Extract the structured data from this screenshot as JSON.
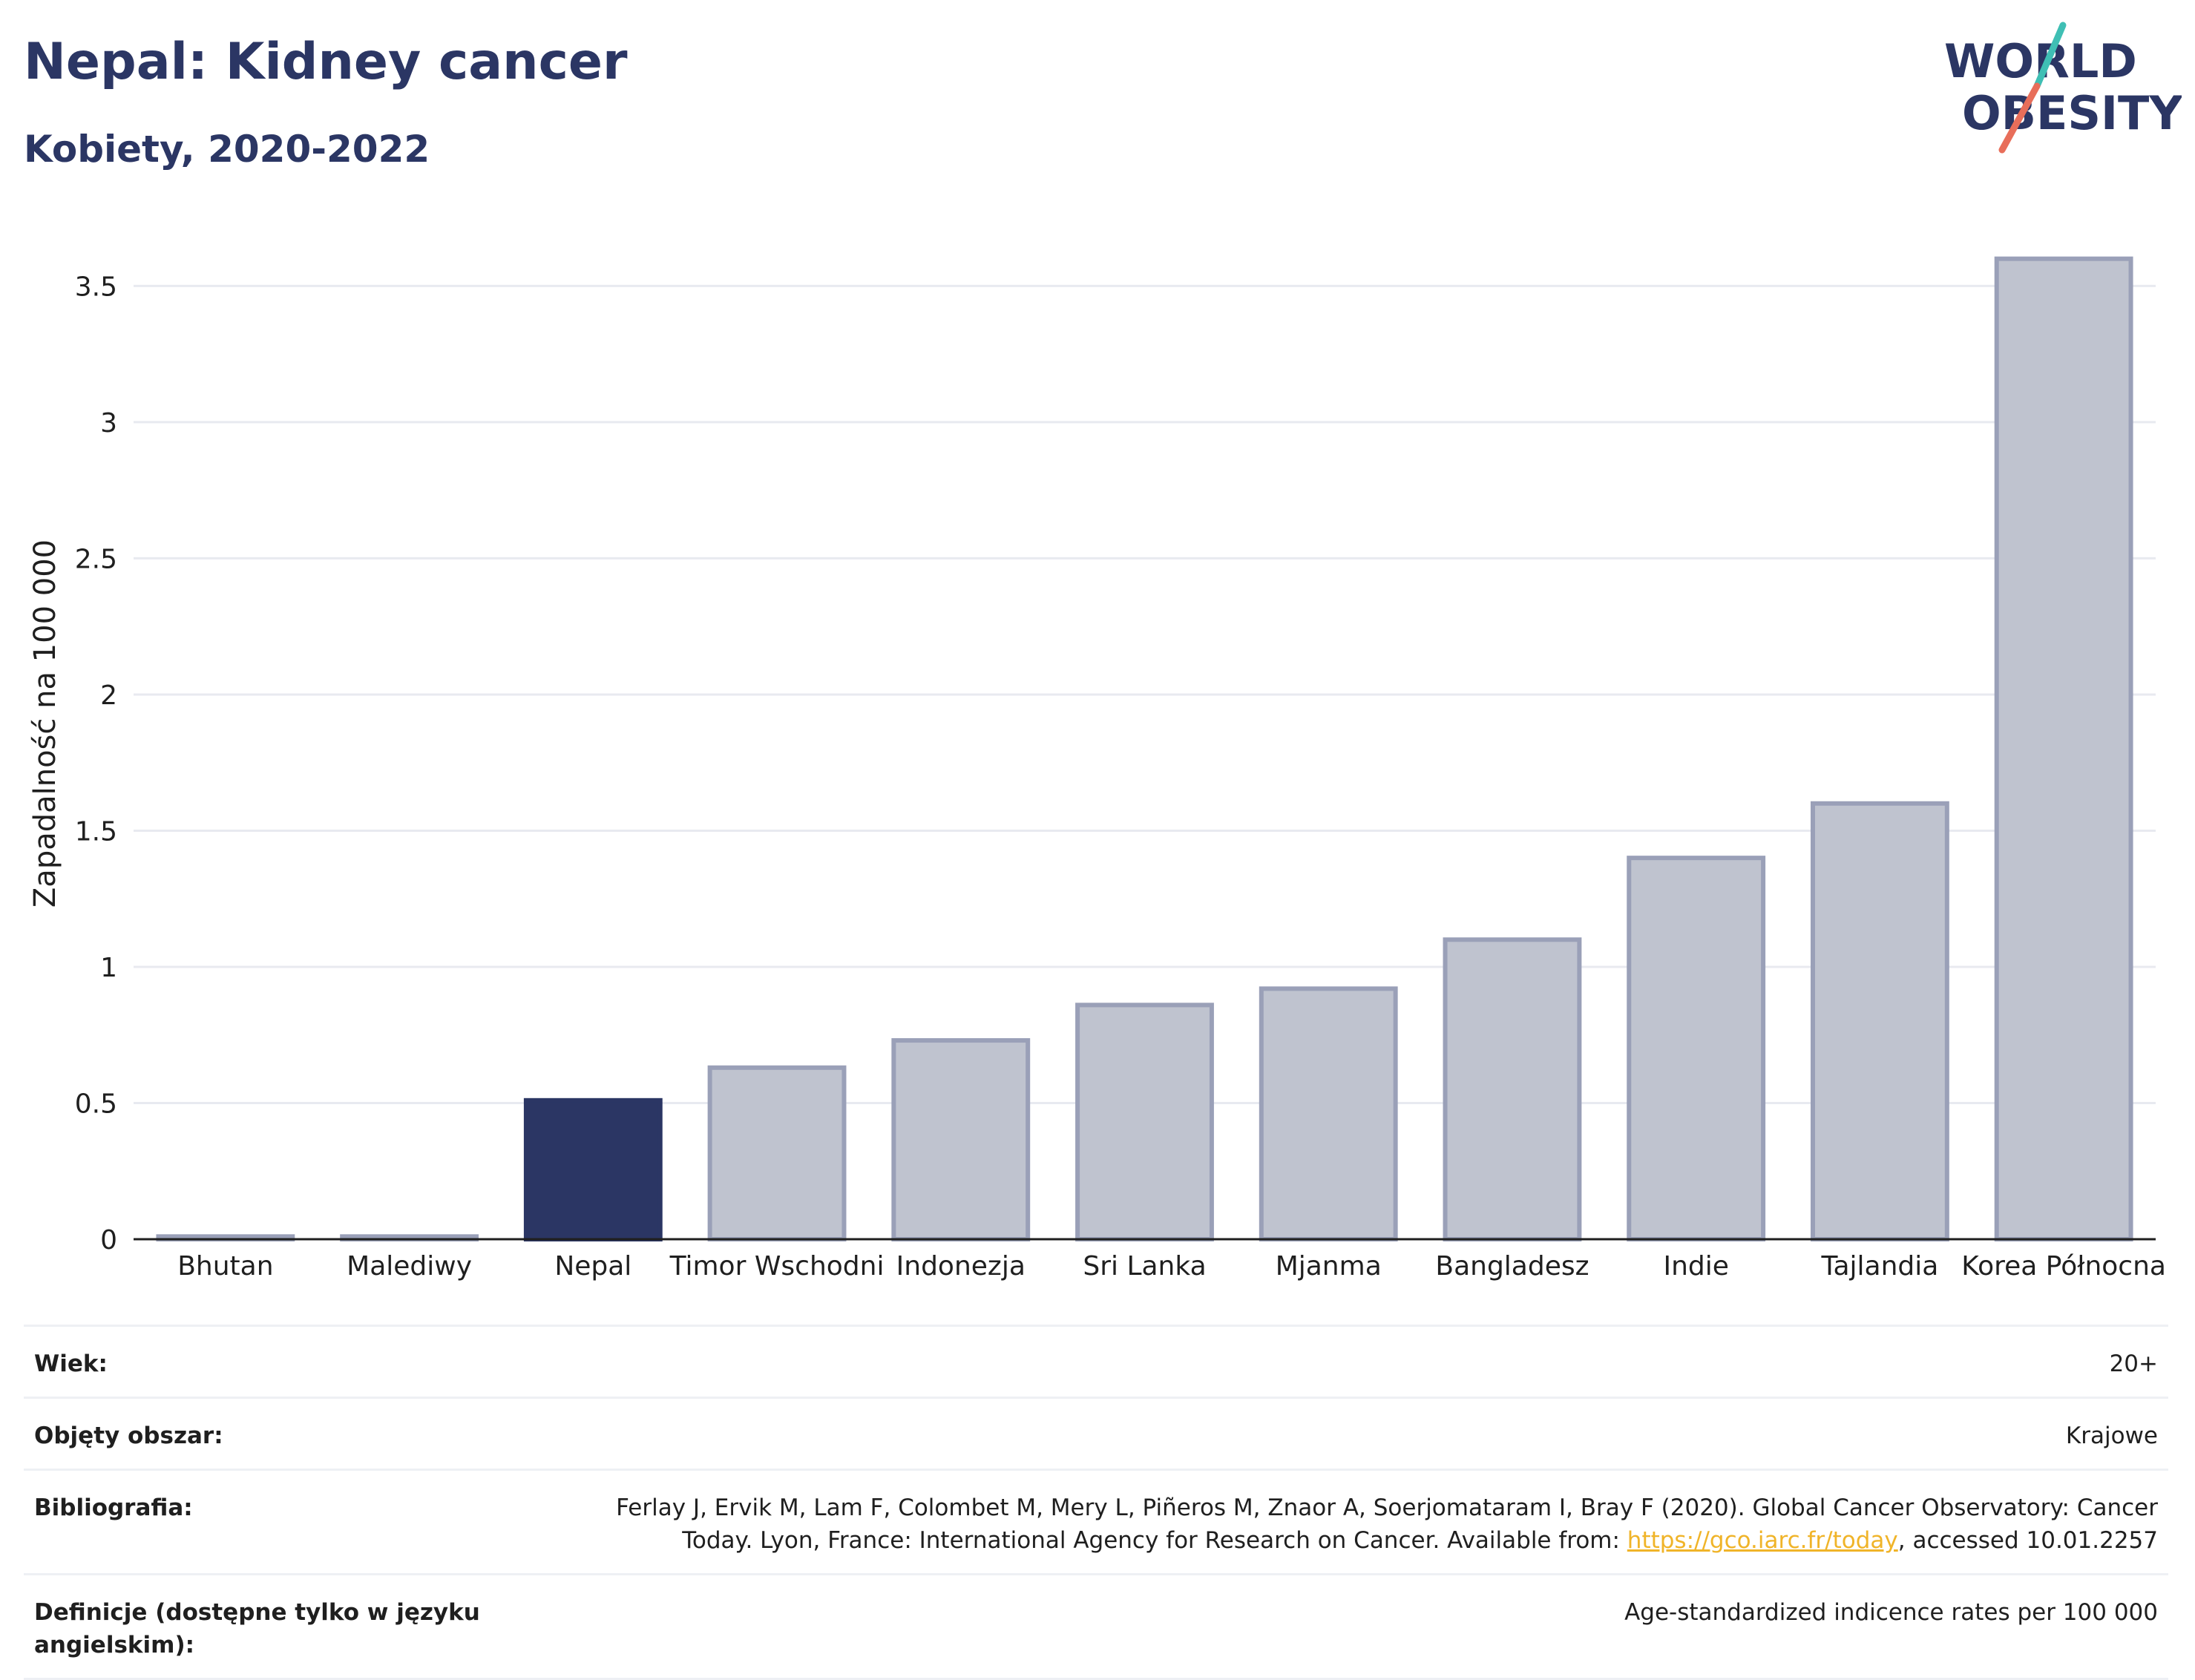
{
  "header": {
    "title": "Nepal: Kidney cancer",
    "subtitle": "Kobiety, 2020-2022"
  },
  "logo": {
    "line1": "WORLD",
    "line2": "OBESITY"
  },
  "colors": {
    "highlight": "#2b3664",
    "bar_fill": "#bfc3cf",
    "bar_stroke": "#9aa0b8",
    "grid": "#e8eaf0",
    "logo_teal": "#3fbfb4",
    "logo_coral": "#e86e5a"
  },
  "chart_data": {
    "type": "bar",
    "ylabel": "Zapadalność na 100 000",
    "ylim": [
      0,
      3.7
    ],
    "yticks": [
      0,
      0.5,
      1,
      1.5,
      2,
      2.5,
      3,
      3.5
    ],
    "ytick_labels": [
      "0",
      "0.5",
      "1",
      "1.5",
      "2",
      "2.5",
      "3",
      "3.5"
    ],
    "grid": true,
    "highlight_category": "Nepal",
    "categories": [
      "Bhutan",
      "Malediwy",
      "Nepal",
      "Timor Wschodni",
      "Indonezja",
      "Sri Lanka",
      "Mjanma",
      "Bangladesz",
      "Indie",
      "Tajlandia",
      "Korea Północna"
    ],
    "values": [
      0.01,
      0.01,
      0.51,
      0.63,
      0.73,
      0.86,
      0.92,
      1.1,
      1.4,
      1.6,
      3.6
    ]
  },
  "meta": {
    "age_label": "Wiek:",
    "age_value": "20+",
    "area_label": "Objęty obszar:",
    "area_value": "Krajowe",
    "biblio_label": "Bibliografia:",
    "biblio_text_1": "Ferlay J, Ervik M, Lam F, Colombet M, Mery L, Piñeros M, Znaor A, Soerjomataram I, Bray F (2020). Global Cancer Observatory: Cancer Today. Lyon, France: International Agency for Research on Cancer. Available from: ",
    "biblio_link": "https://gco.iarc.fr/today",
    "biblio_text_2": ", accessed 10.01.2257",
    "def_label": "Definicje (dostępne tylko w języku angielskim):",
    "def_value": "Age-standardized indicence rates per 100 000"
  }
}
